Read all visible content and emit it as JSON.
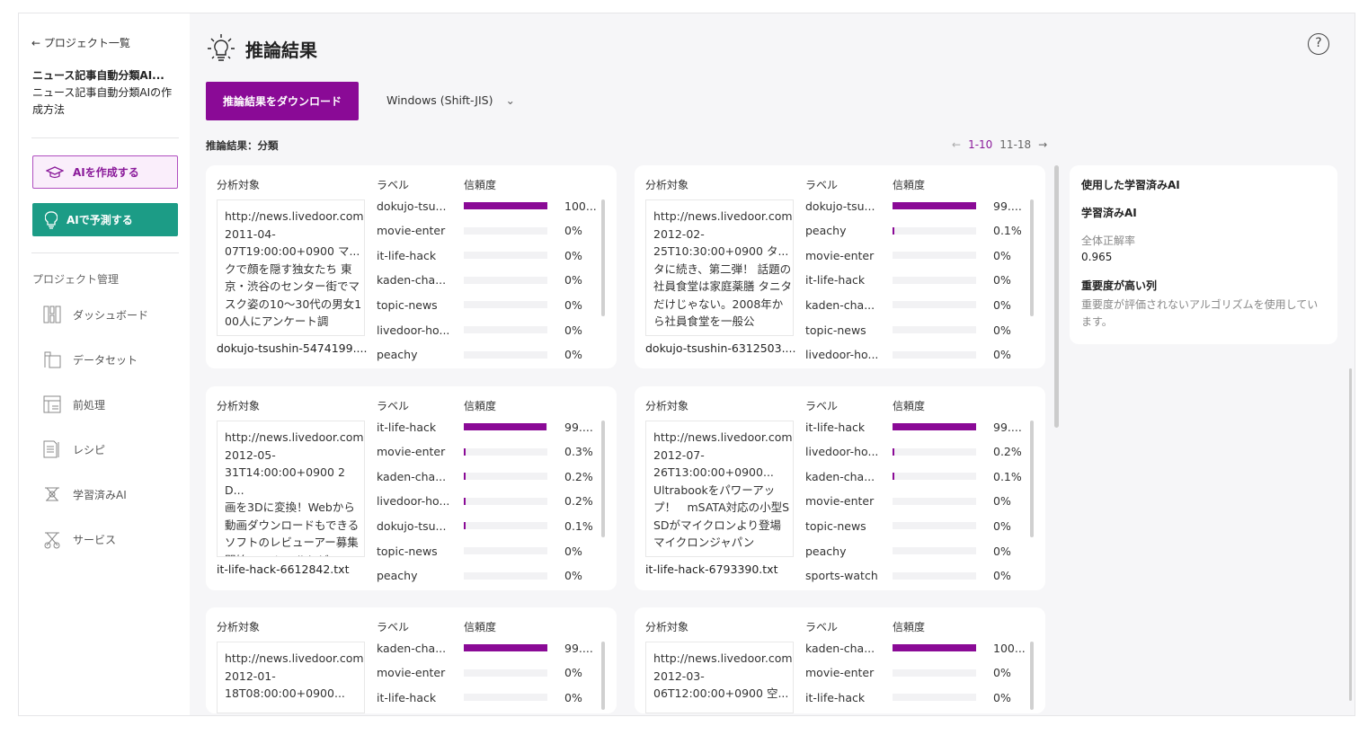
{
  "sidebar": {
    "back": "プロジェクト一覧",
    "project_title": "ニュース記事自動分類AI...",
    "project_sub": "ニュース記事自動分類AIの作成方法",
    "create_ai": "AIを作成する",
    "predict_ai": "AIで予測する",
    "section": "プロジェクト管理",
    "nav": [
      "ダッシュボード",
      "データセット",
      "前処理",
      "レシピ",
      "学習済みAI",
      "サービス"
    ]
  },
  "header": {
    "title": "推論結果",
    "help": "?",
    "download": "推論結果をダウンロード",
    "encoding": "Windows (Shift-JIS)",
    "results_label": "推論結果：分類",
    "pager": {
      "current": "1-10",
      "next": "11-18"
    }
  },
  "card_headers": {
    "target": "分析対象",
    "label": "ラベル",
    "confidence": "信頼度"
  },
  "colors": {
    "accent": "#8a0a96",
    "teal": "#1c9c86"
  },
  "cards": [
    {
      "text": "http://news.livedoor.com\n2011-04-\n07T19:00:00+0900 マ...\nクで顔を隠す独女たち 東京・渋谷のセンター街でマスク姿の10〜30代の男女100人にアンケート調",
      "file": "dokujo-tsushin-5474199....",
      "rows": [
        {
          "l": "dokujo-tsu...",
          "v": 100,
          "p": "100..."
        },
        {
          "l": "movie-enter",
          "v": 0,
          "p": "0%"
        },
        {
          "l": "it-life-hack",
          "v": 0,
          "p": "0%"
        },
        {
          "l": "kaden-cha...",
          "v": 0,
          "p": "0%"
        },
        {
          "l": "topic-news",
          "v": 0,
          "p": "0%"
        },
        {
          "l": "livedoor-ho...",
          "v": 0,
          "p": "0%"
        },
        {
          "l": "peachy",
          "v": 0,
          "p": "0%"
        }
      ]
    },
    {
      "text": "http://news.livedoor.com\n2012-02-\n25T10:30:00+0900 タ...\nタに続き、第二弾！ 話題の社員食堂は家庭薬膳 タニタだけじゃない。2008年から社員食堂を一般公",
      "file": "dokujo-tsushin-6312503....",
      "rows": [
        {
          "l": "dokujo-tsu...",
          "v": 99.9,
          "p": "99...."
        },
        {
          "l": "peachy",
          "v": 0.1,
          "p": "0.1%"
        },
        {
          "l": "movie-enter",
          "v": 0,
          "p": "0%"
        },
        {
          "l": "it-life-hack",
          "v": 0,
          "p": "0%"
        },
        {
          "l": "kaden-cha...",
          "v": 0,
          "p": "0%"
        },
        {
          "l": "topic-news",
          "v": 0,
          "p": "0%"
        },
        {
          "l": "livedoor-ho...",
          "v": 0,
          "p": "0%"
        }
      ]
    },
    {
      "text": "http://news.livedoor.com\n2012-05-\n31T14:00:00+0900 2D...\n画を3Dに変換！Webから動画ダウンロードもできるソフトのレビューアー募集開始 ソーシャルレビ",
      "file": "it-life-hack-6612842.txt",
      "rows": [
        {
          "l": "it-life-hack",
          "v": 99,
          "p": "99...."
        },
        {
          "l": "movie-enter",
          "v": 0.3,
          "p": "0.3%"
        },
        {
          "l": "kaden-cha...",
          "v": 0.2,
          "p": "0.2%"
        },
        {
          "l": "livedoor-ho...",
          "v": 0.2,
          "p": "0.2%"
        },
        {
          "l": "dokujo-tsu...",
          "v": 0.1,
          "p": "0.1%"
        },
        {
          "l": "topic-news",
          "v": 0,
          "p": "0%"
        },
        {
          "l": "peachy",
          "v": 0,
          "p": "0%"
        }
      ]
    },
    {
      "text": "http://news.livedoor.com\n2012-07-\n26T13:00:00+0900...\nUltrabookをパワーアップ！　mSATA対応の小型SSDがマイクロンより登場 マイクロンジャパン",
      "file": "it-life-hack-6793390.txt",
      "rows": [
        {
          "l": "it-life-hack",
          "v": 99.6,
          "p": "99...."
        },
        {
          "l": "livedoor-ho...",
          "v": 0.2,
          "p": "0.2%"
        },
        {
          "l": "kaden-cha...",
          "v": 0.1,
          "p": "0.1%"
        },
        {
          "l": "movie-enter",
          "v": 0,
          "p": "0%"
        },
        {
          "l": "topic-news",
          "v": 0,
          "p": "0%"
        },
        {
          "l": "peachy",
          "v": 0,
          "p": "0%"
        },
        {
          "l": "sports-watch",
          "v": 0,
          "p": "0%"
        }
      ]
    },
    {
      "text": "http://news.livedoor.com\n2012-01-\n18T08:00:00+0900...",
      "file": "",
      "rows": [
        {
          "l": "kaden-cha...",
          "v": 99.9,
          "p": "99...."
        },
        {
          "l": "movie-enter",
          "v": 0,
          "p": "0%"
        },
        {
          "l": "it-life-hack",
          "v": 0,
          "p": "0%"
        }
      ]
    },
    {
      "text": "http://news.livedoor.com\n2012-03-\n06T12:00:00+0900 空...",
      "file": "",
      "rows": [
        {
          "l": "kaden-cha...",
          "v": 100,
          "p": "100..."
        },
        {
          "l": "movie-enter",
          "v": 0,
          "p": "0%"
        },
        {
          "l": "it-life-hack",
          "v": 0,
          "p": "0%"
        }
      ]
    }
  ],
  "info": {
    "title": "使用した学習済みAI",
    "model": "学習済みAI",
    "acc_label": "全体正解率",
    "acc": "0.965",
    "imp_title": "重要度が高い列",
    "imp_text": "重要度が評価されないアルゴリズムを使用しています。"
  }
}
